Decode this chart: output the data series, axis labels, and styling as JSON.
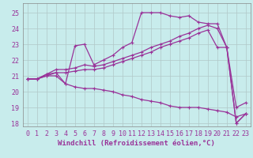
{
  "xlabel": "Windchill (Refroidissement éolien,°C)",
  "bg_color": "#c8ecec",
  "line_color": "#993399",
  "grid_color": "#b0c8c8",
  "xlim": [
    -0.5,
    23.5
  ],
  "ylim": [
    17.8,
    25.6
  ],
  "yticks": [
    18,
    19,
    20,
    21,
    22,
    23,
    24,
    25
  ],
  "xticks": [
    0,
    1,
    2,
    3,
    4,
    5,
    6,
    7,
    8,
    9,
    10,
    11,
    12,
    13,
    14,
    15,
    16,
    17,
    18,
    19,
    20,
    21,
    22,
    23
  ],
  "line1_x": [
    0,
    1,
    2,
    3,
    4,
    5,
    6,
    7,
    8,
    9,
    10,
    11,
    12,
    13,
    14,
    15,
    16,
    17,
    18,
    19,
    20,
    21,
    22,
    23
  ],
  "line1_y": [
    20.8,
    20.8,
    21.1,
    21.2,
    20.5,
    22.9,
    23.0,
    21.7,
    22.0,
    22.3,
    22.8,
    23.1,
    25.0,
    25.0,
    25.0,
    24.8,
    24.7,
    24.8,
    24.4,
    24.3,
    24.3,
    22.8,
    18.0,
    18.6
  ],
  "line2_x": [
    0,
    1,
    2,
    3,
    4,
    5,
    6,
    7,
    8,
    9,
    10,
    11,
    12,
    13,
    14,
    15,
    16,
    17,
    18,
    19,
    20,
    21,
    22,
    23
  ],
  "line2_y": [
    20.8,
    20.8,
    21.1,
    21.4,
    21.4,
    21.5,
    21.7,
    21.6,
    21.7,
    21.9,
    22.1,
    22.3,
    22.5,
    22.8,
    23.0,
    23.2,
    23.5,
    23.7,
    24.0,
    24.2,
    24.0,
    22.8,
    18.0,
    18.6
  ],
  "line3_x": [
    0,
    1,
    2,
    3,
    4,
    5,
    6,
    7,
    8,
    9,
    10,
    11,
    12,
    13,
    14,
    15,
    16,
    17,
    18,
    19,
    20,
    21,
    22,
    23
  ],
  "line3_y": [
    20.8,
    20.8,
    21.0,
    21.2,
    21.2,
    21.3,
    21.4,
    21.4,
    21.5,
    21.7,
    21.9,
    22.1,
    22.3,
    22.5,
    22.8,
    23.0,
    23.2,
    23.4,
    23.7,
    23.9,
    22.8,
    22.8,
    19.0,
    19.3
  ],
  "line4_x": [
    0,
    1,
    2,
    3,
    4,
    5,
    6,
    7,
    8,
    9,
    10,
    11,
    12,
    13,
    14,
    15,
    16,
    17,
    18,
    19,
    20,
    21,
    22,
    23
  ],
  "line4_y": [
    20.8,
    20.8,
    21.0,
    21.0,
    20.5,
    20.3,
    20.2,
    20.2,
    20.1,
    20.0,
    19.8,
    19.7,
    19.5,
    19.4,
    19.3,
    19.1,
    19.0,
    19.0,
    19.0,
    18.9,
    18.8,
    18.7,
    18.4,
    18.6
  ],
  "marker": "+",
  "markersize": 3,
  "linewidth": 0.9,
  "xlabel_fontsize": 6.5,
  "tick_fontsize": 6,
  "tick_color": "#993399"
}
